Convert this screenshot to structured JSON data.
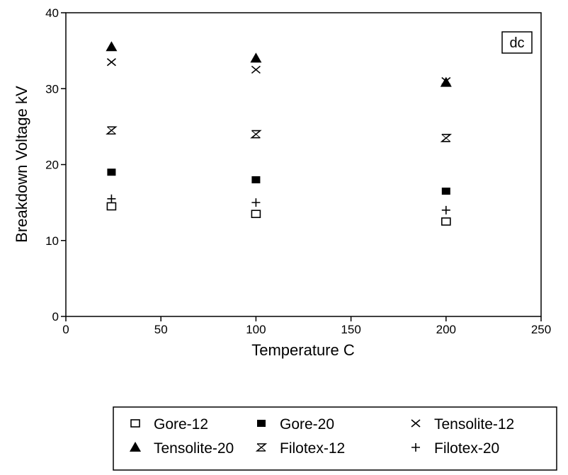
{
  "chart_data": {
    "type": "scatter",
    "title": "",
    "xlabel": "Temperature C",
    "ylabel": "Breakdown Voltage kV",
    "xlim": [
      0,
      250
    ],
    "ylim": [
      0,
      40
    ],
    "xticks": [
      0,
      50,
      100,
      150,
      200,
      250
    ],
    "yticks": [
      0,
      10,
      20,
      30,
      40
    ],
    "grid": false,
    "legend_position": "bottom",
    "annotation": "dc",
    "series": [
      {
        "name": "Gore-12",
        "marker": "square-open",
        "x": [
          24,
          100,
          200
        ],
        "y": [
          14.5,
          13.5,
          12.5
        ]
      },
      {
        "name": "Gore-20",
        "marker": "square-filled",
        "x": [
          24,
          100,
          200
        ],
        "y": [
          19,
          18,
          16.5
        ]
      },
      {
        "name": "Tensolite-12",
        "marker": "x",
        "x": [
          24,
          100,
          200
        ],
        "y": [
          33.5,
          32.5,
          31
        ]
      },
      {
        "name": "Tensolite-20",
        "marker": "triangle-filled",
        "x": [
          24,
          100,
          200
        ],
        "y": [
          35.5,
          34,
          30.8
        ]
      },
      {
        "name": "Filotex-12",
        "marker": "hourglass",
        "x": [
          24,
          100,
          200
        ],
        "y": [
          24.5,
          24,
          23.5
        ]
      },
      {
        "name": "Filotex-20",
        "marker": "plus",
        "x": [
          24,
          100,
          200
        ],
        "y": [
          15.5,
          15,
          14
        ]
      }
    ]
  }
}
